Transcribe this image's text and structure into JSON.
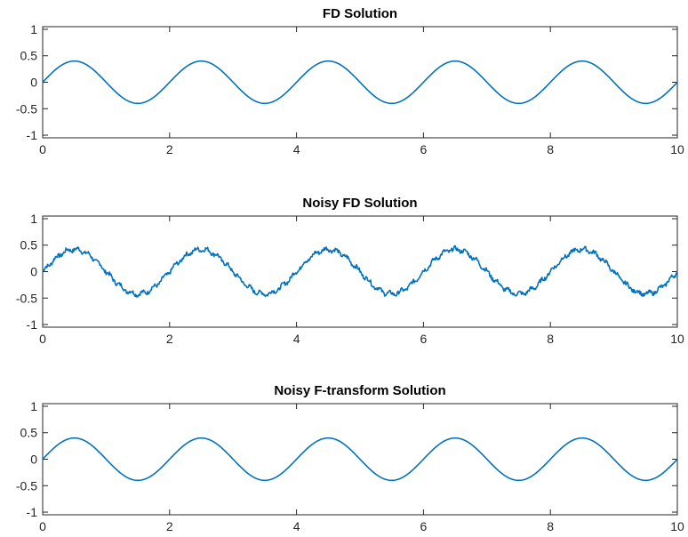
{
  "chart_data": [
    {
      "type": "line",
      "title": "FD Solution",
      "xlabel": "",
      "ylabel": "",
      "xlim": [
        0,
        10
      ],
      "ylim": [
        -1.05,
        1.05
      ],
      "xticks": [
        0,
        2,
        4,
        6,
        8,
        10
      ],
      "xtick_labels": [
        "0",
        "2",
        "4",
        "6",
        "8",
        "10"
      ],
      "yticks": [
        1,
        0.5,
        0,
        -0.5,
        -1
      ],
      "ytick_labels": [
        "1",
        "0.5",
        "0",
        "-0.5",
        "-1"
      ],
      "grid": false,
      "color": "#0072BD",
      "series": [
        {
          "x": [
            0,
            0.5,
            1,
            1.5,
            2,
            2.5,
            3,
            3.5,
            4,
            4.5,
            5,
            5.5,
            6,
            6.5,
            7,
            7.5,
            8,
            8.5,
            9,
            9.5,
            10
          ],
          "y": [
            0,
            0.4,
            0,
            -0.4,
            0,
            0.4,
            0,
            -0.4,
            0,
            0.4,
            0,
            -0.4,
            0,
            0.4,
            0,
            -0.4,
            0,
            0.4,
            0,
            -0.4,
            0
          ]
        }
      ]
    },
    {
      "type": "line",
      "title": "Noisy FD Solution",
      "xlabel": "",
      "ylabel": "",
      "xlim": [
        0,
        10
      ],
      "ylim": [
        -1.05,
        1.05
      ],
      "xticks": [
        0,
        2,
        4,
        6,
        8,
        10
      ],
      "xtick_labels": [
        "0",
        "2",
        "4",
        "6",
        "8",
        "10"
      ],
      "yticks": [
        1,
        0.5,
        0,
        -0.5,
        -1
      ],
      "ytick_labels": [
        "1",
        "0.5",
        "0",
        "-0.5",
        "-1"
      ],
      "grid": false,
      "color": "#0072BD",
      "series": [
        {
          "x": [
            0,
            0.25,
            0.5,
            0.75,
            1,
            1.25,
            1.5,
            1.75,
            2,
            2.25,
            2.5,
            2.75,
            3,
            3.25,
            3.5,
            3.75,
            4,
            4.25,
            4.5,
            4.75,
            5,
            5.25,
            5.5,
            5.75,
            6,
            6.25,
            6.5,
            6.75,
            7,
            7.25,
            7.5,
            7.75,
            8,
            8.25,
            8.5,
            8.75,
            9,
            9.25,
            9.5,
            9.75,
            10
          ],
          "y": [
            0.02,
            0.3,
            0.42,
            0.3,
            0.03,
            -0.3,
            -0.41,
            -0.28,
            0.01,
            0.31,
            0.43,
            0.28,
            -0.02,
            -0.31,
            -0.4,
            -0.29,
            0.02,
            0.29,
            0.42,
            0.3,
            0.01,
            -0.3,
            -0.41,
            -0.28,
            0.0,
            0.3,
            0.42,
            0.29,
            0.02,
            -0.3,
            -0.4,
            -0.29,
            0.01,
            0.3,
            0.43,
            0.3,
            -0.01,
            -0.29,
            -0.41,
            -0.3,
            0.02
          ]
        }
      ]
    },
    {
      "type": "line",
      "title": "Noisy F-transform Solution",
      "xlabel": "",
      "ylabel": "",
      "xlim": [
        0,
        10
      ],
      "ylim": [
        -1.05,
        1.05
      ],
      "xticks": [
        0,
        2,
        4,
        6,
        8,
        10
      ],
      "xtick_labels": [
        "0",
        "2",
        "4",
        "6",
        "8",
        "10"
      ],
      "yticks": [
        1,
        0.5,
        0,
        -0.5,
        -1
      ],
      "ytick_labels": [
        "1",
        "0.5",
        "0",
        "-0.5",
        "-1"
      ],
      "grid": false,
      "color": "#0072BD",
      "series": [
        {
          "x": [
            0,
            0.5,
            1,
            1.5,
            2,
            2.5,
            3,
            3.5,
            4,
            4.5,
            5,
            5.5,
            6,
            6.5,
            7,
            7.5,
            8,
            8.5,
            9,
            9.5,
            10
          ],
          "y": [
            0,
            0.4,
            0,
            -0.4,
            0,
            0.4,
            0,
            -0.4,
            0,
            0.4,
            0,
            -0.4,
            0,
            0.4,
            0,
            -0.4,
            0,
            0.4,
            0,
            -0.4,
            0
          ]
        }
      ]
    }
  ]
}
